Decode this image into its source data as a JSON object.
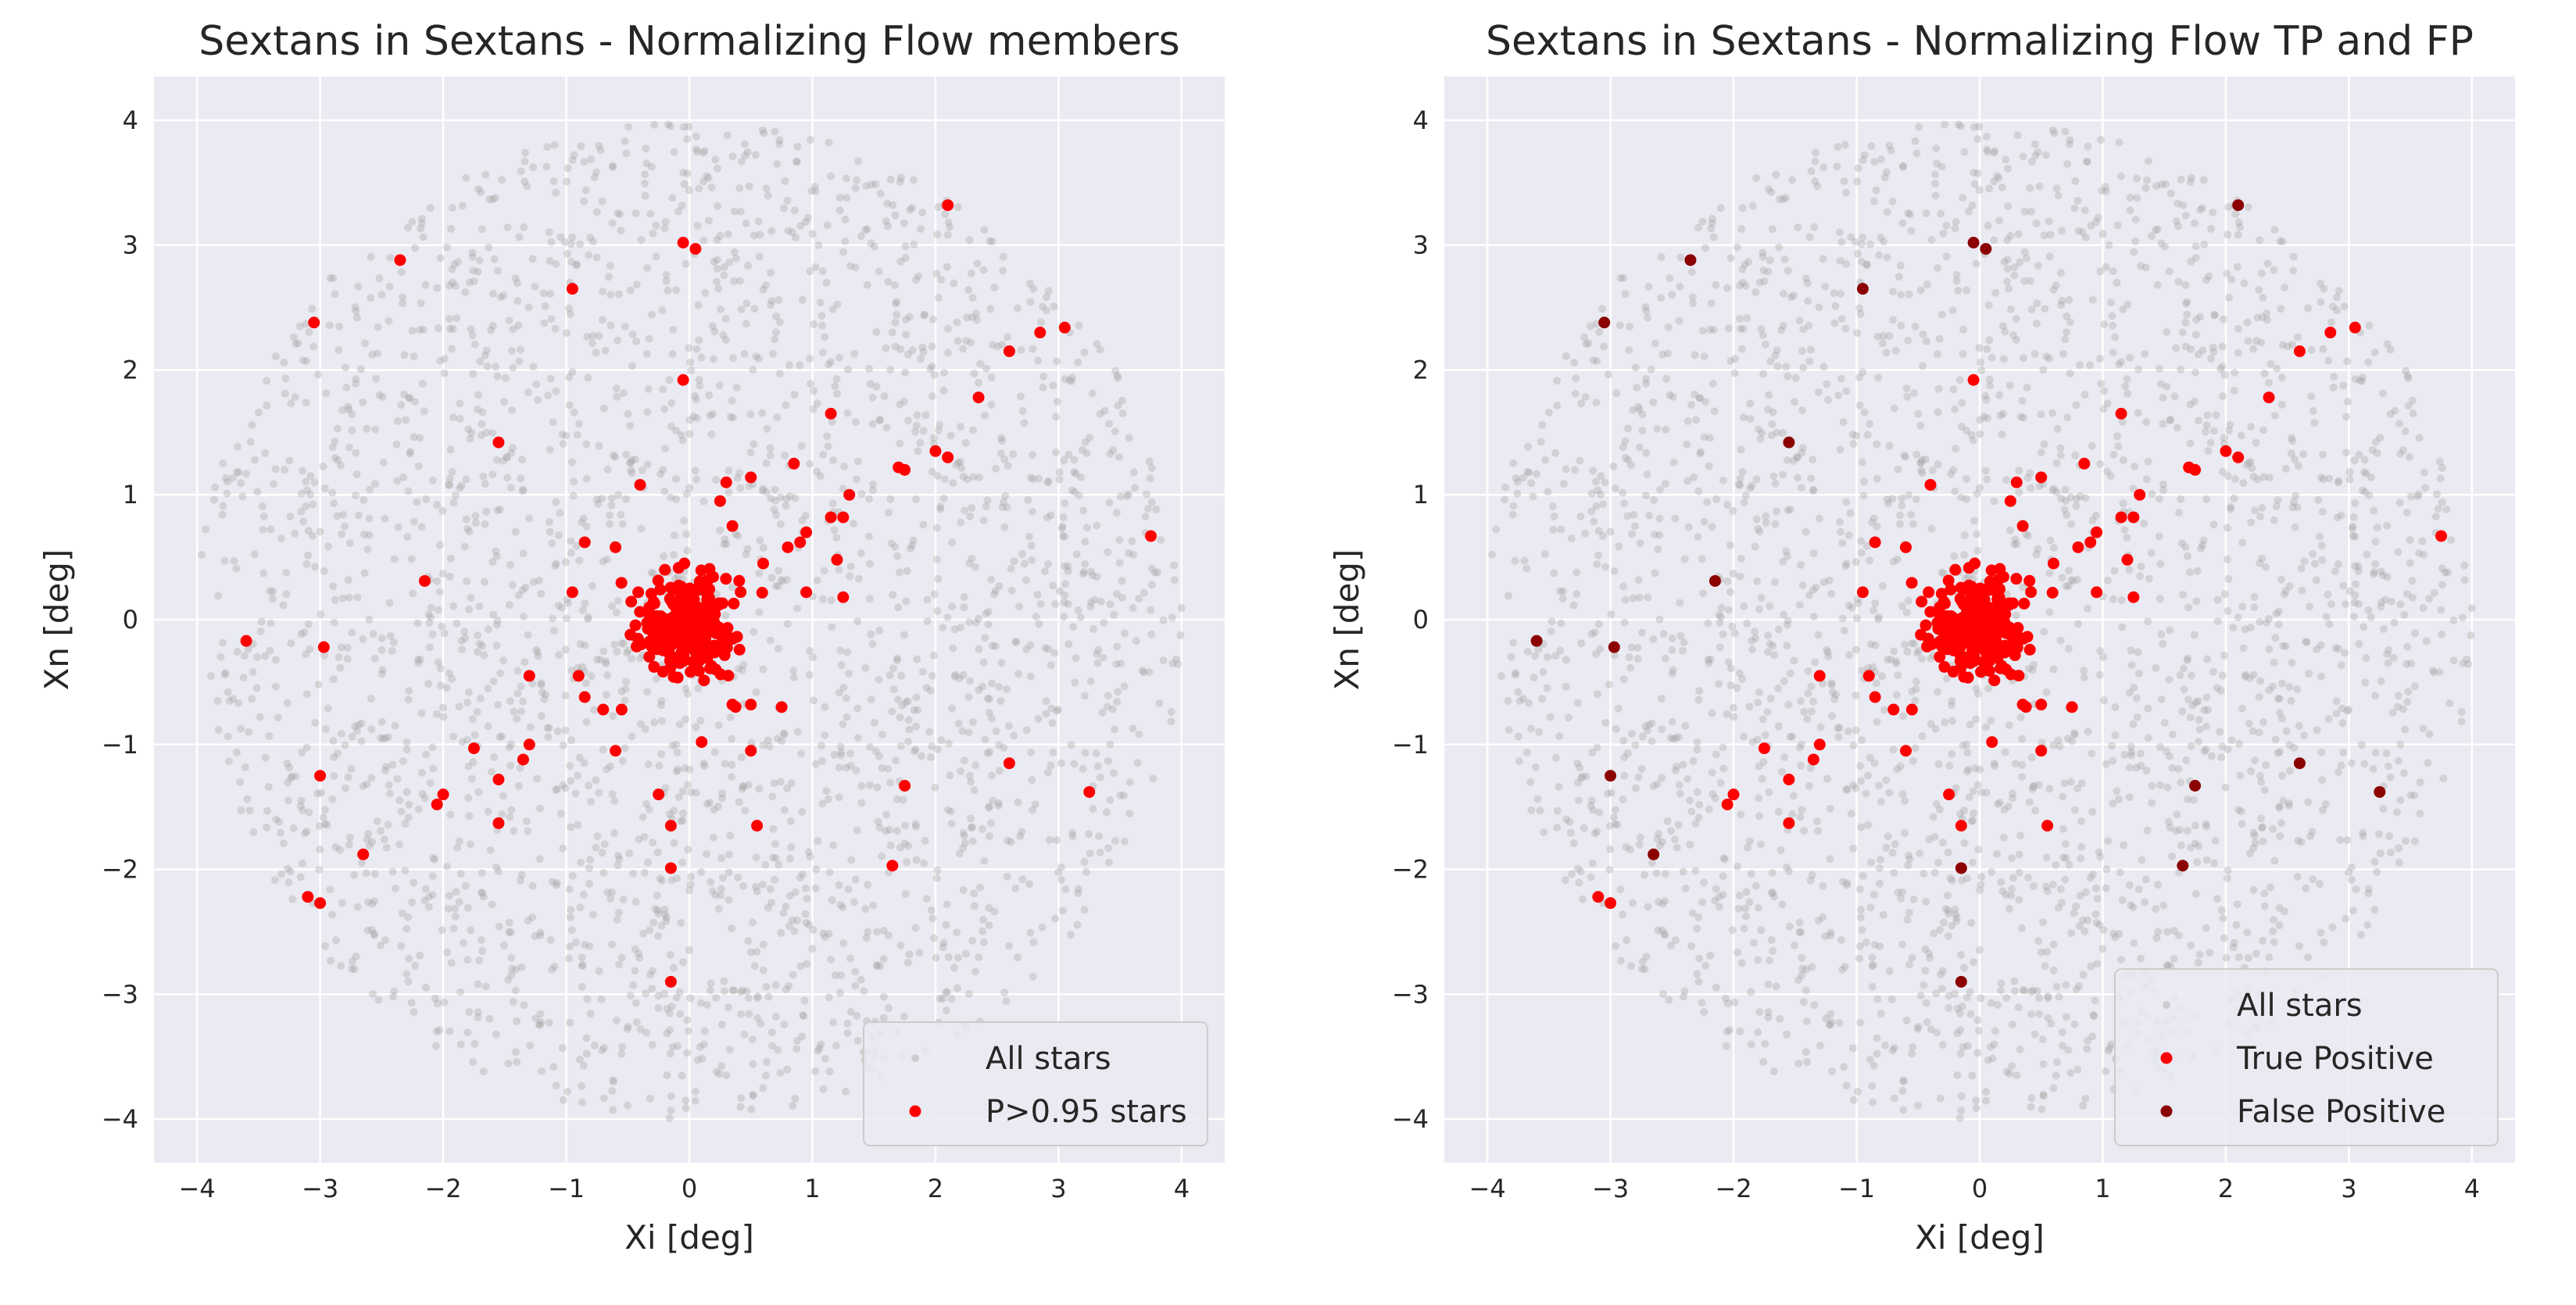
{
  "chart_data": [
    {
      "type": "scatter",
      "title": "Sextans in Sextans - Normalizing Flow members",
      "xlabel": "Xi [deg]",
      "ylabel": "Xn [deg]",
      "xlim": [
        -4.35,
        4.35
      ],
      "ylim": [
        -4.35,
        4.35
      ],
      "xticks": [
        -4,
        -3,
        -2,
        -1,
        0,
        1,
        2,
        3,
        4
      ],
      "yticks": [
        -4,
        -3,
        -2,
        -1,
        0,
        1,
        2,
        3,
        4
      ],
      "grid": true,
      "legend_position": "bottom-right",
      "colors": {
        "background": "#eaeaf2",
        "grid": "#ffffff",
        "all_stars": "#a9a9a9",
        "members": "#ff0000"
      },
      "legend": [
        "All stars",
        "P>0.95 stars"
      ],
      "background_sample": {
        "count": 2600,
        "radius_deg": 4.0,
        "note_values": "random field"
      },
      "series": [
        {
          "name": "P>0.95 stars",
          "points": [
            [
              2.1,
              3.32
            ],
            [
              -0.05,
              3.02
            ],
            [
              0.05,
              2.97
            ],
            [
              -2.35,
              2.88
            ],
            [
              -0.95,
              2.65
            ],
            [
              -3.05,
              2.38
            ],
            [
              3.05,
              2.34
            ],
            [
              2.85,
              2.3
            ],
            [
              2.6,
              2.15
            ],
            [
              -0.05,
              1.92
            ],
            [
              2.35,
              1.78
            ],
            [
              1.15,
              1.65
            ],
            [
              -1.55,
              1.42
            ],
            [
              2.0,
              1.35
            ],
            [
              2.1,
              1.3
            ],
            [
              0.85,
              1.25
            ],
            [
              1.7,
              1.22
            ],
            [
              1.75,
              1.2
            ],
            [
              0.5,
              1.14
            ],
            [
              0.3,
              1.1
            ],
            [
              -0.4,
              1.08
            ],
            [
              1.3,
              1.0
            ],
            [
              0.25,
              0.95
            ],
            [
              1.15,
              0.82
            ],
            [
              1.25,
              0.82
            ],
            [
              0.35,
              0.75
            ],
            [
              0.95,
              0.7
            ],
            [
              3.75,
              0.67
            ],
            [
              0.9,
              0.62
            ],
            [
              0.8,
              0.58
            ],
            [
              -0.85,
              0.62
            ],
            [
              -0.6,
              0.58
            ],
            [
              1.2,
              0.48
            ],
            [
              0.6,
              0.45
            ],
            [
              -2.15,
              0.31
            ],
            [
              -0.95,
              0.22
            ],
            [
              0.95,
              0.22
            ],
            [
              1.25,
              0.18
            ],
            [
              -3.6,
              -0.17
            ],
            [
              -2.97,
              -0.22
            ],
            [
              -1.3,
              -0.45
            ],
            [
              -0.9,
              -0.45
            ],
            [
              -0.85,
              -0.62
            ],
            [
              -0.7,
              -0.72
            ],
            [
              -0.55,
              -0.72
            ],
            [
              0.35,
              -0.68
            ],
            [
              0.5,
              -0.68
            ],
            [
              0.75,
              -0.7
            ],
            [
              0.1,
              -0.98
            ],
            [
              -0.6,
              -1.05
            ],
            [
              0.5,
              -1.05
            ],
            [
              -1.35,
              -1.12
            ],
            [
              -1.75,
              -1.03
            ],
            [
              -1.3,
              -1.0
            ],
            [
              2.6,
              -1.15
            ],
            [
              -3.0,
              -1.25
            ],
            [
              -1.55,
              -1.28
            ],
            [
              1.75,
              -1.33
            ],
            [
              3.25,
              -1.38
            ],
            [
              -0.25,
              -1.4
            ],
            [
              -2.0,
              -1.4
            ],
            [
              -2.05,
              -1.48
            ],
            [
              -1.55,
              -1.63
            ],
            [
              -0.15,
              -1.65
            ],
            [
              0.55,
              -1.65
            ],
            [
              -2.65,
              -1.88
            ],
            [
              1.65,
              -1.97
            ],
            [
              -0.15,
              -1.99
            ],
            [
              -3.1,
              -2.22
            ],
            [
              -3.0,
              -2.27
            ],
            [
              -0.15,
              -2.9
            ]
          ],
          "core": {
            "center": [
              0.0,
              -0.05
            ],
            "count": 260,
            "spread_deg": 0.2
          }
        }
      ]
    },
    {
      "type": "scatter",
      "title": "Sextans in Sextans - Normalizing Flow TP and FP",
      "xlabel": "Xi [deg]",
      "ylabel": "Xn [deg]",
      "xlim": [
        -4.35,
        4.35
      ],
      "ylim": [
        -4.35,
        4.35
      ],
      "xticks": [
        -4,
        -3,
        -2,
        -1,
        0,
        1,
        2,
        3,
        4
      ],
      "yticks": [
        -4,
        -3,
        -2,
        -1,
        0,
        1,
        2,
        3,
        4
      ],
      "grid": true,
      "legend_position": "bottom-right",
      "colors": {
        "background": "#eaeaf2",
        "grid": "#ffffff",
        "all_stars": "#a9a9a9",
        "true_positive": "#ff0000",
        "false_positive": "#8b0000"
      },
      "legend": [
        "All stars",
        "True Positive",
        "False Positive"
      ],
      "background_sample": {
        "count": 2600,
        "radius_deg": 4.0
      },
      "series": [
        {
          "name": "True Positive",
          "points": [
            [
              3.05,
              2.34
            ],
            [
              2.85,
              2.3
            ],
            [
              2.6,
              2.15
            ],
            [
              -0.05,
              1.92
            ],
            [
              2.35,
              1.78
            ],
            [
              1.15,
              1.65
            ],
            [
              2.0,
              1.35
            ],
            [
              2.1,
              1.3
            ],
            [
              0.85,
              1.25
            ],
            [
              1.7,
              1.22
            ],
            [
              1.75,
              1.2
            ],
            [
              0.5,
              1.14
            ],
            [
              0.3,
              1.1
            ],
            [
              -0.4,
              1.08
            ],
            [
              1.3,
              1.0
            ],
            [
              0.25,
              0.95
            ],
            [
              1.15,
              0.82
            ],
            [
              1.25,
              0.82
            ],
            [
              0.35,
              0.75
            ],
            [
              0.95,
              0.7
            ],
            [
              3.75,
              0.67
            ],
            [
              0.9,
              0.62
            ],
            [
              0.8,
              0.58
            ],
            [
              -0.85,
              0.62
            ],
            [
              -0.6,
              0.58
            ],
            [
              1.2,
              0.48
            ],
            [
              0.6,
              0.45
            ],
            [
              -0.95,
              0.22
            ],
            [
              0.95,
              0.22
            ],
            [
              1.25,
              0.18
            ],
            [
              -1.3,
              -0.45
            ],
            [
              -0.9,
              -0.45
            ],
            [
              -0.85,
              -0.62
            ],
            [
              -0.7,
              -0.72
            ],
            [
              -0.55,
              -0.72
            ],
            [
              0.35,
              -0.68
            ],
            [
              0.5,
              -0.68
            ],
            [
              0.75,
              -0.7
            ],
            [
              0.1,
              -0.98
            ],
            [
              -0.6,
              -1.05
            ],
            [
              0.5,
              -1.05
            ],
            [
              -1.35,
              -1.12
            ],
            [
              -1.75,
              -1.03
            ],
            [
              -1.3,
              -1.0
            ],
            [
              -1.55,
              -1.28
            ],
            [
              -0.25,
              -1.4
            ],
            [
              -2.0,
              -1.4
            ],
            [
              -2.05,
              -1.48
            ],
            [
              -1.55,
              -1.63
            ],
            [
              -0.15,
              -1.65
            ],
            [
              0.55,
              -1.65
            ],
            [
              -3.1,
              -2.22
            ],
            [
              -3.0,
              -2.27
            ]
          ],
          "core": {
            "center": [
              0.0,
              -0.05
            ],
            "count": 260,
            "spread_deg": 0.2
          }
        },
        {
          "name": "False Positive",
          "points": [
            [
              2.1,
              3.32
            ],
            [
              -0.05,
              3.02
            ],
            [
              0.05,
              2.97
            ],
            [
              -2.35,
              2.88
            ],
            [
              -0.95,
              2.65
            ],
            [
              -3.05,
              2.38
            ],
            [
              -1.55,
              1.42
            ],
            [
              -2.15,
              0.31
            ],
            [
              -3.6,
              -0.17
            ],
            [
              -2.97,
              -0.22
            ],
            [
              2.6,
              -1.15
            ],
            [
              -3.0,
              -1.25
            ],
            [
              1.75,
              -1.33
            ],
            [
              3.25,
              -1.38
            ],
            [
              -2.65,
              -1.88
            ],
            [
              1.65,
              -1.97
            ],
            [
              -0.15,
              -1.99
            ],
            [
              -0.15,
              -2.9
            ]
          ]
        }
      ]
    }
  ]
}
